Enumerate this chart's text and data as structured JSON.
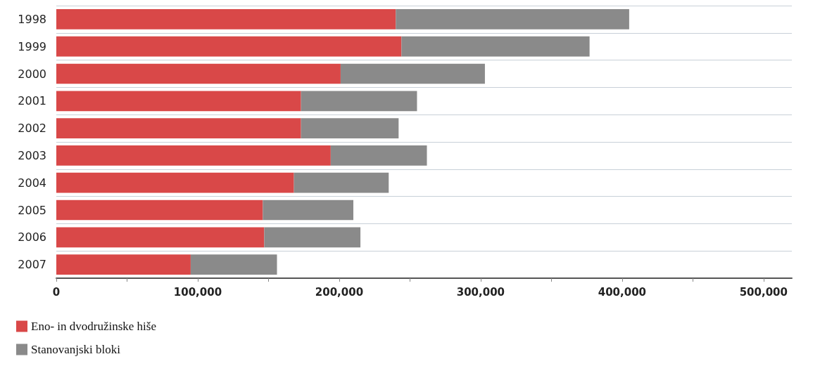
{
  "chart_data": {
    "type": "bar",
    "orientation": "horizontal",
    "stacked": true,
    "categories": [
      "1998",
      "1999",
      "2000",
      "2001",
      "2002",
      "2003",
      "2004",
      "2005",
      "2006",
      "2007"
    ],
    "series": [
      {
        "name": "Eno- in dvodružinske hiše",
        "color": "#d94848",
        "values": [
          240000,
          244000,
          201000,
          173000,
          173000,
          194000,
          168000,
          146000,
          147000,
          95000
        ]
      },
      {
        "name": "Stanovanjski bloki",
        "color": "#8a8a8a",
        "values": [
          165000,
          133000,
          102000,
          82000,
          69000,
          68000,
          67000,
          64000,
          68000,
          61000
        ]
      }
    ],
    "xlim": [
      0,
      520000
    ],
    "xticks": [
      0,
      {
        "value": 50000,
        "label": null
      },
      {
        "value": 100000,
        "label": "100,000"
      },
      {
        "value": 150000,
        "label": null
      },
      {
        "value": 200000,
        "label": "200,000"
      },
      {
        "value": 250000,
        "label": null
      },
      {
        "value": 300000,
        "label": "300,000"
      },
      {
        "value": 350000,
        "label": null
      },
      {
        "value": 400000,
        "label": "400,000"
      },
      {
        "value": 450000,
        "label": null
      },
      {
        "value": 500000,
        "label": "500,000"
      }
    ],
    "grid": "y",
    "legend": "bottom left"
  }
}
